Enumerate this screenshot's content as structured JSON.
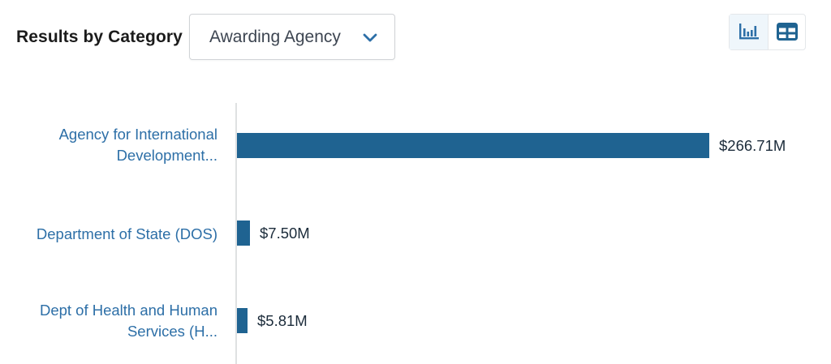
{
  "header": {
    "title": "Results by Category",
    "dropdown_selected": "Awarding Agency",
    "dropdown_icon": "chevron-down-icon",
    "accent_color": "#2d6fa7"
  },
  "view_toggle": {
    "options": [
      {
        "icon": "bar-chart-icon",
        "active": true
      },
      {
        "icon": "table-icon",
        "active": false
      }
    ]
  },
  "chart_data": {
    "type": "bar",
    "orientation": "horizontal",
    "bar_color": "#1f6391",
    "categories": [
      [
        "Agency for International",
        "Development..."
      ],
      [
        "Department of State (DOS)"
      ],
      [
        "Dept of Health and Human",
        "Services (H..."
      ]
    ],
    "values": [
      266.71,
      7.5,
      5.81
    ],
    "value_labels": [
      "$266.71M",
      "$7.50M",
      "$5.81M"
    ],
    "unit": "$M",
    "xlim": [
      0,
      266.71
    ]
  }
}
